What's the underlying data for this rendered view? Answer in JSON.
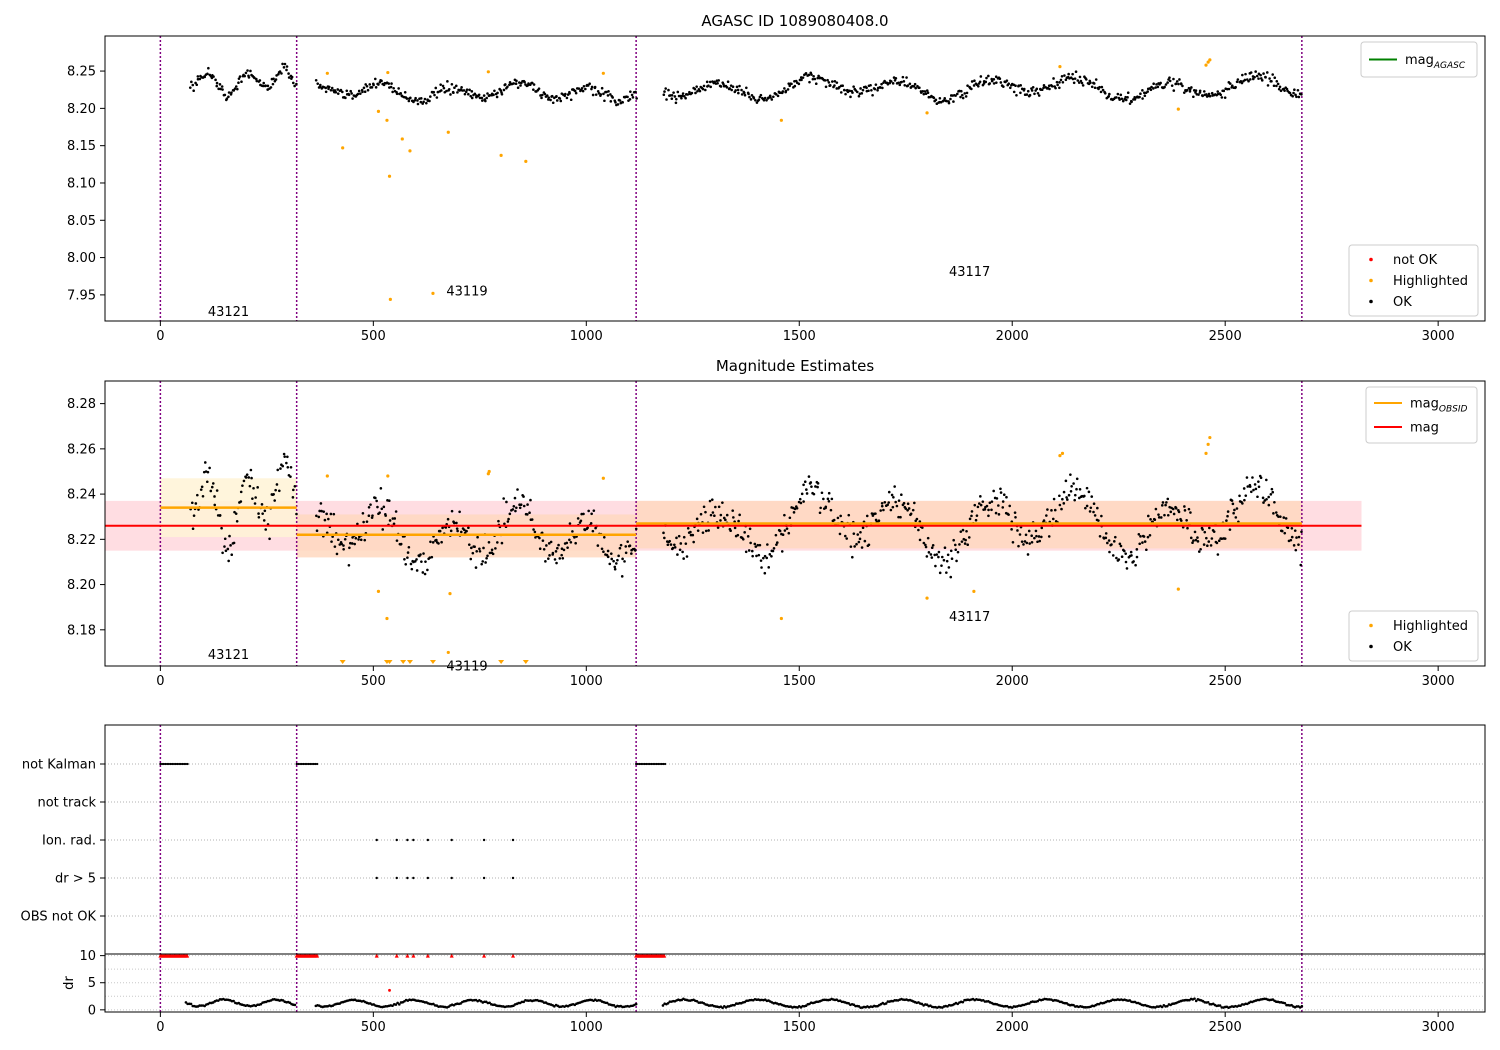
{
  "colors": {
    "ok": "#000000",
    "highlighted": "#ffa500",
    "not_ok": "#ff0000",
    "mag_agasc": "#008000",
    "mag_obsid": "#ffa500",
    "mag": "#ff0000",
    "obs_line": "#800080",
    "obs_band_1": "#fff3d6",
    "obs_band_2": "#ffd8c0",
    "mag_band": "#ffdde2"
  },
  "chart_data": [
    {
      "id": "agasc",
      "type": "scatter",
      "title": "AGASC ID 1089080408.0",
      "xlim": [
        -130,
        3110
      ],
      "ylim": [
        7.915,
        8.297
      ],
      "x_ticks": [
        0,
        500,
        1000,
        1500,
        2000,
        2500,
        3000
      ],
      "x_tick_labels": [
        "0",
        "500",
        "1000",
        "1500",
        "2000",
        "2500",
        "3000"
      ],
      "y_ticks": [
        7.95,
        8.0,
        8.05,
        8.1,
        8.15,
        8.2,
        8.25
      ],
      "y_tick_labels": [
        "7.95",
        "8.00",
        "8.05",
        "8.10",
        "8.15",
        "8.20",
        "8.25"
      ],
      "obs_boundaries": [
        0,
        320,
        1117,
        2680
      ],
      "obs_labels": [
        {
          "text": "43121",
          "x": 160,
          "y": 7.922
        },
        {
          "text": "43119",
          "x": 720,
          "y": 7.949
        },
        {
          "text": "43117",
          "x": 1900,
          "y": 7.975
        }
      ],
      "segments": [
        {
          "x_start": 70,
          "x_end": 318,
          "mean": 8.236,
          "amp": 0.013,
          "period": 90,
          "scatter": 0.007
        },
        {
          "x_start": 365,
          "x_end": 1117,
          "mean": 8.222,
          "amp": 0.009,
          "period": 160,
          "scatter": 0.007
        },
        {
          "x_start": 1180,
          "x_end": 2680,
          "mean": 8.227,
          "amp": 0.011,
          "period": 210,
          "scatter": 0.007
        }
      ],
      "highlighted": [
        [
          392,
          8.247
        ],
        [
          428,
          8.147
        ],
        [
          512,
          8.196
        ],
        [
          532,
          8.184
        ],
        [
          534,
          8.248
        ],
        [
          538,
          8.109
        ],
        [
          540,
          7.944
        ],
        [
          568,
          8.159
        ],
        [
          586,
          8.143
        ],
        [
          640,
          7.952
        ],
        [
          676,
          8.168
        ],
        [
          770,
          8.249
        ],
        [
          800,
          8.137
        ],
        [
          858,
          8.129
        ],
        [
          1040,
          8.247
        ],
        [
          1458,
          8.184
        ],
        [
          1800,
          8.194
        ],
        [
          2112,
          8.256
        ],
        [
          2390,
          8.199
        ],
        [
          2455,
          8.258
        ],
        [
          2460,
          8.262
        ],
        [
          2464,
          8.265
        ]
      ],
      "legend_top": [
        {
          "label": "mag",
          "sub": "AGASC",
          "kind": "line",
          "color_key": "mag_agasc"
        }
      ],
      "legend_bottom": [
        {
          "label": "not OK",
          "kind": "marker",
          "color_key": "not_ok"
        },
        {
          "label": "Highlighted",
          "kind": "marker",
          "color_key": "highlighted"
        },
        {
          "label": "OK",
          "kind": "marker",
          "color_key": "ok"
        }
      ]
    },
    {
      "id": "estimates",
      "type": "scatter",
      "title": "Magnitude Estimates",
      "xlim": [
        -130,
        3110
      ],
      "ylim": [
        8.164,
        8.29
      ],
      "x_ticks": [
        0,
        500,
        1000,
        1500,
        2000,
        2500,
        3000
      ],
      "x_tick_labels": [
        "0",
        "500",
        "1000",
        "1500",
        "2000",
        "2500",
        "3000"
      ],
      "y_ticks": [
        8.18,
        8.2,
        8.22,
        8.24,
        8.26,
        8.28
      ],
      "y_tick_labels": [
        "8.18",
        "8.20",
        "8.22",
        "8.24",
        "8.26",
        "8.28"
      ],
      "obs_boundaries": [
        0,
        320,
        1117,
        2680
      ],
      "obs_labels": [
        {
          "text": "43121",
          "x": 160,
          "y": 8.167
        },
        {
          "text": "43119",
          "x": 720,
          "y": 8.162
        },
        {
          "text": "43117",
          "x": 1900,
          "y": 8.184
        }
      ],
      "obs_mags": [
        {
          "x_start": 0,
          "x_end": 320,
          "mag": 8.234,
          "lower": 8.221,
          "upper": 8.247
        },
        {
          "x_start": 320,
          "x_end": 1117,
          "mag": 8.222,
          "lower": 8.212,
          "upper": 8.231
        },
        {
          "x_start": 1117,
          "x_end": 2680,
          "mag": 8.227,
          "lower": 8.216,
          "upper": 8.237
        }
      ],
      "mag": {
        "x_start": -130,
        "x_end": 2820,
        "value": 8.226,
        "lower": 8.215,
        "upper": 8.237
      },
      "segments": [
        {
          "x_start": 70,
          "x_end": 318,
          "mean": 8.236,
          "amp": 0.013,
          "period": 90,
          "scatter": 0.007
        },
        {
          "x_start": 365,
          "x_end": 1117,
          "mean": 8.222,
          "amp": 0.009,
          "period": 160,
          "scatter": 0.007
        },
        {
          "x_start": 1180,
          "x_end": 2680,
          "mean": 8.227,
          "amp": 0.011,
          "period": 210,
          "scatter": 0.007
        }
      ],
      "highlighted": [
        [
          392,
          8.248
        ],
        [
          512,
          8.197
        ],
        [
          532,
          8.185
        ],
        [
          534,
          8.248
        ],
        [
          676,
          8.17
        ],
        [
          680,
          8.196
        ],
        [
          770,
          8.249
        ],
        [
          772,
          8.25
        ],
        [
          1040,
          8.247
        ],
        [
          1458,
          8.185
        ],
        [
          1800,
          8.194
        ],
        [
          1910,
          8.197
        ],
        [
          2112,
          8.257
        ],
        [
          2118,
          8.258
        ],
        [
          2390,
          8.198
        ],
        [
          2455,
          8.258
        ],
        [
          2460,
          8.262
        ],
        [
          2464,
          8.265
        ]
      ],
      "below_range": [
        428,
        532,
        538,
        570,
        586,
        640,
        800,
        858
      ],
      "legend_top": [
        {
          "label": "mag",
          "sub": "OBSID",
          "kind": "line",
          "color_key": "mag_obsid"
        },
        {
          "label": "mag",
          "kind": "line",
          "color_key": "mag"
        }
      ],
      "legend_bottom": [
        {
          "label": "Highlighted",
          "kind": "marker",
          "color_key": "highlighted"
        },
        {
          "label": "OK",
          "kind": "marker",
          "color_key": "ok"
        }
      ]
    },
    {
      "id": "flags",
      "type": "scatter",
      "title": "",
      "xlim": [
        -130,
        3110
      ],
      "categories": [
        "not Kalman",
        "not track",
        "Ion. rad.",
        "dr > 5",
        "OBS not OK"
      ],
      "obs_boundaries": [
        0,
        320,
        1117,
        2680
      ],
      "not_kalman_ranges": [
        [
          0,
          65
        ],
        [
          320,
          370
        ],
        [
          1117,
          1185
        ]
      ],
      "ion_rad_x": [
        508,
        555,
        580,
        594,
        628,
        684,
        760,
        828
      ],
      "dr_gt5_x": [
        508,
        555,
        580,
        594,
        628,
        684,
        760,
        828
      ]
    },
    {
      "id": "dr",
      "type": "scatter",
      "title": "",
      "ylabel": "dr",
      "xlim": [
        -130,
        3110
      ],
      "ylim": [
        -0.4,
        10.3
      ],
      "x_ticks": [
        0,
        500,
        1000,
        1500,
        2000,
        2500,
        3000
      ],
      "x_tick_labels": [
        "0",
        "500",
        "1000",
        "1500",
        "2000",
        "2500",
        "3000"
      ],
      "y_ticks": [
        0,
        5,
        10
      ],
      "y_tick_labels": [
        "0",
        "5",
        "10"
      ],
      "obs_boundaries": [
        0,
        320,
        1117,
        2680
      ],
      "clipped_ranges": [
        [
          0,
          65
        ],
        [
          320,
          370
        ],
        [
          1117,
          1185
        ]
      ],
      "clipped_x": [
        508,
        555,
        580,
        594,
        628,
        684,
        760,
        828
      ],
      "outlier": [
        538,
        3.6
      ],
      "segments": [
        {
          "x_start": 60,
          "x_end": 318,
          "mean": 1.3,
          "amp": 0.6,
          "period": 120
        },
        {
          "x_start": 365,
          "x_end": 1117,
          "mean": 1.2,
          "amp": 0.6,
          "period": 140
        },
        {
          "x_start": 1180,
          "x_end": 2680,
          "mean": 1.2,
          "amp": 0.7,
          "period": 170
        }
      ]
    }
  ]
}
